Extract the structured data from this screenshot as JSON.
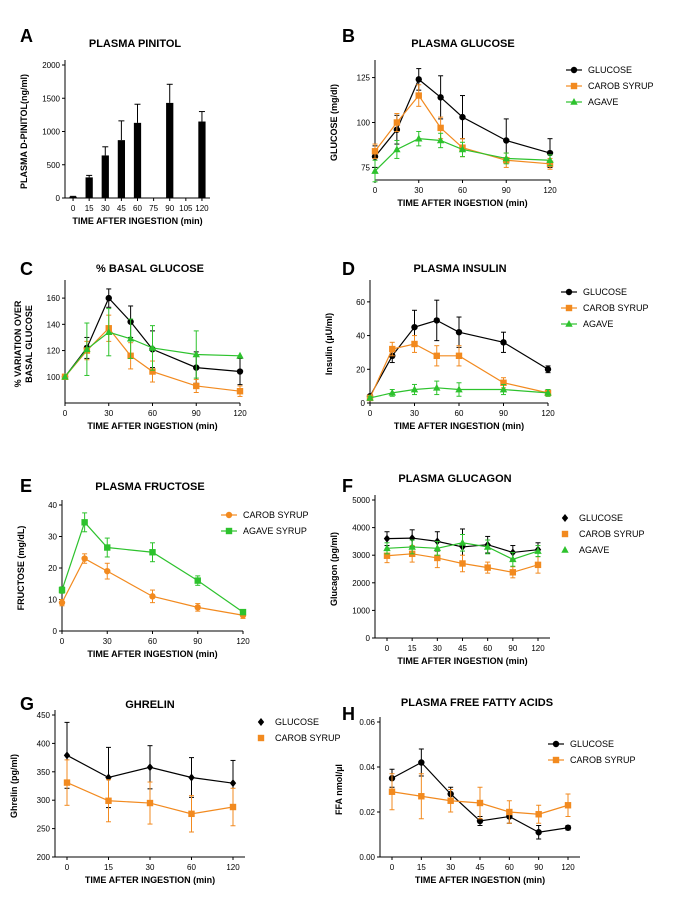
{
  "chart_data": [
    {
      "panel": "A",
      "type": "bar",
      "title": "PLASMA PINITOL",
      "xlabel": "TIME AFTER INGESTION (min)",
      "ylabel": "PLASMA D-PINITOL(ng/ml)",
      "categories": [
        "0",
        "15",
        "30",
        "45",
        "60",
        "75",
        "90",
        "105",
        "120"
      ],
      "ylim": [
        0,
        2000
      ],
      "yticks": [
        "0",
        "500",
        "1000",
        "1500",
        "2000"
      ],
      "series": [
        {
          "name": "Pinitol",
          "color": "#000000",
          "values": [
            20,
            310,
            640,
            870,
            1130,
            null,
            1430,
            null,
            1150
          ],
          "errors": [
            5,
            30,
            130,
            290,
            280,
            null,
            280,
            null,
            150
          ]
        }
      ]
    },
    {
      "panel": "B",
      "type": "line",
      "title": "PLASMA GLUCOSE",
      "xlabel": "TIME AFTER INGESTION (min)",
      "ylabel": "GLUCOSE (mg/dl)",
      "x": [
        0,
        15,
        30,
        45,
        60,
        90,
        120
      ],
      "xticks": [
        "0",
        "30",
        "60",
        "90",
        "120"
      ],
      "xlim": [
        0,
        120
      ],
      "ylim": [
        68,
        132
      ],
      "yticks": [
        "75",
        "100",
        "125"
      ],
      "series": [
        {
          "name": "GLUCOSE",
          "color": "#000000",
          "marker": "circle",
          "values": [
            81,
            96,
            124,
            114,
            103,
            90,
            83
          ],
          "errors": [
            6,
            8,
            6,
            12,
            12,
            12,
            8
          ]
        },
        {
          "name": "CAROB SYRUP",
          "color": "#f28a1f",
          "marker": "square",
          "values": [
            84,
            100,
            115,
            97,
            86,
            79,
            77
          ],
          "errors": [
            4,
            5,
            6,
            6,
            5,
            4,
            3
          ]
        },
        {
          "name": "AGAVE",
          "color": "#2dc22d",
          "marker": "triangle",
          "values": [
            73,
            85,
            91,
            90,
            85,
            80,
            79
          ],
          "errors": [
            6,
            5,
            4,
            4,
            4,
            3,
            3
          ]
        }
      ]
    },
    {
      "panel": "C",
      "type": "line",
      "title": "% BASAL GLUCOSE",
      "xlabel": "TIME AFTER INGESTION (min)",
      "ylabel": "% VARIATION OVER BASAL GLUCOSE",
      "x": [
        0,
        15,
        30,
        45,
        60,
        90,
        120
      ],
      "xticks": [
        "0",
        "30",
        "60",
        "90",
        "120"
      ],
      "xlim": [
        0,
        120
      ],
      "ylim": [
        80,
        170
      ],
      "yticks": [
        "100",
        "120",
        "140",
        "160"
      ],
      "series": [
        {
          "name": "GLUCOSE",
          "color": "#000000",
          "marker": "circle",
          "values": [
            100,
            122,
            160,
            142,
            121,
            107,
            104
          ],
          "errors": [
            0,
            8,
            7,
            12,
            14,
            12,
            10
          ]
        },
        {
          "name": "CAROB SYRUP",
          "color": "#f28a1f",
          "marker": "square",
          "values": [
            100,
            120,
            137,
            116,
            104,
            93,
            89
          ],
          "errors": [
            0,
            7,
            10,
            10,
            8,
            5,
            4
          ]
        },
        {
          "name": "AGAVE",
          "color": "#2dc22d",
          "marker": "triangle",
          "values": [
            100,
            121,
            134,
            129,
            122,
            117,
            116
          ],
          "errors": [
            0,
            20,
            18,
            15,
            17,
            18,
            0
          ]
        }
      ]
    },
    {
      "panel": "D",
      "type": "line",
      "title": "PLASMA INSULIN",
      "xlabel": "TIME AFTER INGESTION (min)",
      "ylabel": "Insulin (µU/ml)",
      "x": [
        0,
        15,
        30,
        45,
        60,
        90,
        120
      ],
      "xticks": [
        "0",
        "30",
        "60",
        "90",
        "120"
      ],
      "xlim": [
        0,
        120
      ],
      "ylim": [
        0,
        70
      ],
      "yticks": [
        "0",
        "20",
        "40",
        "60"
      ],
      "series": [
        {
          "name": "GLUCOSE",
          "color": "#000000",
          "marker": "circle",
          "values": [
            4,
            28,
            45,
            49,
            42,
            36,
            20
          ],
          "errors": [
            1,
            4,
            10,
            12,
            9,
            6,
            2
          ]
        },
        {
          "name": "CAROB SYRUP",
          "color": "#f28a1f",
          "marker": "square",
          "values": [
            3,
            32,
            35,
            28,
            28,
            12,
            6
          ],
          "errors": [
            1,
            4,
            5,
            6,
            6,
            3,
            2
          ]
        },
        {
          "name": "AGAVE",
          "color": "#2dc22d",
          "marker": "triangle",
          "values": [
            3,
            6,
            8,
            9,
            8,
            8,
            6
          ],
          "errors": [
            1,
            2,
            3,
            4,
            4,
            3,
            2
          ]
        }
      ]
    },
    {
      "panel": "E",
      "type": "line",
      "title": "PLASMA FRUCTOSE",
      "xlabel": "TIME AFTER INGESTION (min)",
      "ylabel": "FRUCTOSE (mg/dL)",
      "x": [
        0,
        15,
        30,
        60,
        90,
        120
      ],
      "xticks": [
        "0",
        "30",
        "60",
        "90",
        "120"
      ],
      "xlim": [
        0,
        120
      ],
      "ylim": [
        0,
        40
      ],
      "yticks": [
        "0",
        "10",
        "20",
        "30",
        "40"
      ],
      "series": [
        {
          "name": "CAROB SYRUP",
          "color": "#f28a1f",
          "marker": "circle",
          "values": [
            9,
            23,
            19,
            11,
            7.5,
            5
          ],
          "errors": [
            1,
            1.5,
            2.5,
            2,
            1.2,
            1
          ]
        },
        {
          "name": "AGAVE SYRUP",
          "color": "#2dc22d",
          "marker": "square",
          "values": [
            13,
            34.5,
            26.5,
            25,
            16,
            6
          ],
          "errors": [
            1,
            3,
            3,
            3,
            1.5,
            0.5
          ]
        }
      ]
    },
    {
      "panel": "F",
      "type": "line",
      "title": "PLASMA GLUCAGON",
      "xlabel": "TIME AFTER INGESTION (min)",
      "ylabel": "Glucagon (pg/ml)",
      "x": [
        0,
        15,
        30,
        45,
        60,
        90,
        120
      ],
      "categorical": true,
      "ylim": [
        0,
        5000
      ],
      "yticks": [
        "0",
        "1000",
        "2000",
        "3000",
        "4000",
        "5000"
      ],
      "series": [
        {
          "name": "GLUCOSE",
          "color": "#000000",
          "marker": "diamond",
          "values": [
            3600,
            3620,
            3500,
            3300,
            3380,
            3100,
            3200
          ],
          "errors": [
            250,
            300,
            350,
            650,
            300,
            250,
            250
          ]
        },
        {
          "name": "CAROB SYRUP",
          "color": "#f28a1f",
          "marker": "square",
          "values": [
            2980,
            3050,
            2900,
            2700,
            2550,
            2380,
            2650
          ],
          "errors": [
            250,
            300,
            350,
            300,
            200,
            200,
            300
          ]
        },
        {
          "name": "AGAVE",
          "color": "#2dc22d",
          "marker": "triangle",
          "values": [
            3250,
            3300,
            3250,
            3450,
            3300,
            2850,
            3150
          ],
          "errors": [
            200,
            250,
            250,
            300,
            250,
            250,
            200
          ]
        }
      ]
    },
    {
      "panel": "G",
      "type": "line",
      "title": "GHRELIN",
      "xlabel": "TIME AFTER INGESTION (min)",
      "ylabel": "Ghrelin (pg/ml)",
      "x": [
        0,
        15,
        30,
        60,
        120
      ],
      "categorical": true,
      "ylim": [
        200,
        450
      ],
      "yticks": [
        "200",
        "250",
        "300",
        "350",
        "400",
        "450"
      ],
      "series": [
        {
          "name": "GLUCOSE",
          "color": "#000000",
          "marker": "diamond",
          "values": [
            379,
            340,
            358,
            340,
            330
          ],
          "errors": [
            58,
            53,
            38,
            35,
            40
          ]
        },
        {
          "name": "CAROB SYRUP",
          "color": "#f28a1f",
          "marker": "square",
          "values": [
            331,
            299,
            295,
            276,
            288
          ],
          "errors": [
            40,
            37,
            37,
            32,
            33
          ]
        }
      ]
    },
    {
      "panel": "H",
      "type": "line",
      "title": "PLASMA FREE FATTY ACIDS",
      "xlabel": "TIME AFTER INGESTION (min)",
      "ylabel": "FFA nmol/µl",
      "x": [
        0,
        15,
        30,
        45,
        60,
        90,
        120
      ],
      "categorical": true,
      "ylim": [
        0,
        0.06
      ],
      "yticks": [
        "0.00",
        "0.02",
        "0.04",
        "0.06"
      ],
      "series": [
        {
          "name": "GLUCOSE",
          "color": "#000000",
          "marker": "circle",
          "values": [
            0.035,
            0.042,
            0.028,
            0.016,
            0.018,
            0.011,
            0.013
          ],
          "errors": [
            0.004,
            0.006,
            0.003,
            0.002,
            0.003,
            0.003,
            0.001
          ]
        },
        {
          "name": "CAROB SYRUP",
          "color": "#f28a1f",
          "marker": "square",
          "values": [
            0.029,
            0.027,
            0.025,
            0.024,
            0.02,
            0.019,
            0.023
          ],
          "errors": [
            0.008,
            0.01,
            0.005,
            0.007,
            0.005,
            0.004,
            0.005
          ]
        }
      ]
    }
  ]
}
